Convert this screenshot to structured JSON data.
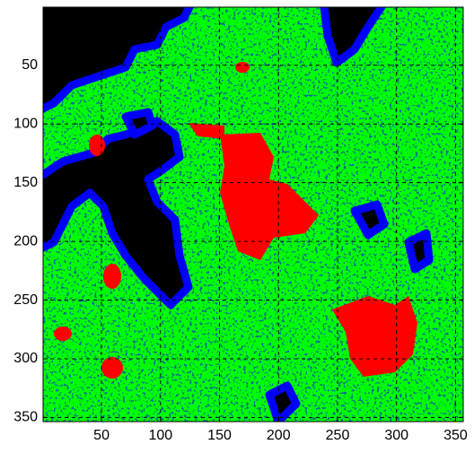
{
  "chart_data": {
    "type": "image",
    "xlim": [
      0.5,
      356.5
    ],
    "ylim": [
      0.5,
      353.5
    ],
    "y_reversed": true,
    "xticks": [
      50,
      100,
      150,
      200,
      250,
      300,
      350
    ],
    "yticks": [
      50,
      100,
      150,
      200,
      250,
      300,
      350
    ],
    "grid": true
  }
}
